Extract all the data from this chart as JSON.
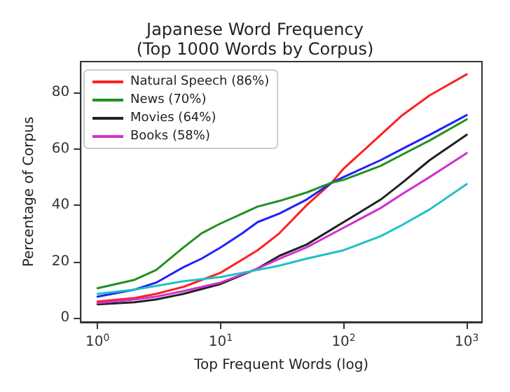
{
  "chart_data": {
    "type": "line",
    "title": "Japanese Word Frequency",
    "subtitle": "(Top 1000 Words by Corpus)",
    "xlabel": "Top Frequent Words (log)",
    "ylabel": "Percentage of Corpus",
    "log": "x",
    "xlim": [
      0.73,
      1330
    ],
    "xticks": [
      {
        "value": 1,
        "label": "10$^{0}$"
      },
      {
        "value": 10,
        "label": "10$^{1}$"
      },
      {
        "value": 100,
        "label": "10$^{2}$"
      },
      {
        "value": 1000,
        "label": "10$^{3}$"
      }
    ],
    "ylim": [
      -1.5,
      91
    ],
    "yticks": [
      0,
      20,
      40,
      60,
      80
    ],
    "grid": false,
    "legend": "top left",
    "marker": "none",
    "line_style": "solid",
    "series": [
      {
        "name": "Natural Speech (86%)",
        "color": "#ff2020",
        "x": [
          1,
          2,
          3,
          5,
          10,
          20,
          30,
          50,
          80,
          100,
          200,
          300,
          500,
          1000
        ],
        "values": [
          5.8,
          7,
          8.5,
          11,
          16,
          24,
          30,
          40,
          48,
          53,
          65,
          72,
          79,
          86.5
        ]
      },
      {
        "color": "#2020ff",
        "x": [
          1,
          2,
          3,
          5,
          7,
          10,
          15,
          20,
          30,
          50,
          80,
          100,
          200,
          300,
          500,
          1000
        ],
        "values": [
          7.5,
          10,
          12.5,
          18,
          21,
          25,
          30,
          34,
          37,
          42,
          48,
          50,
          56,
          60,
          65,
          72
        ]
      },
      {
        "name": "News (70%)",
        "color": "#209020",
        "x": [
          1,
          2,
          3,
          5,
          7,
          9,
          10,
          15,
          20,
          30,
          50,
          80,
          100,
          200,
          300,
          500,
          1000
        ],
        "values": [
          10.5,
          13.5,
          17,
          25,
          30,
          32.5,
          33.5,
          37,
          39.5,
          41.5,
          44.5,
          48,
          49,
          54,
          58,
          63,
          70.5
        ]
      },
      {
        "name": "Movies (64%)",
        "color": "#202020",
        "x": [
          1,
          2,
          3,
          5,
          10,
          20,
          30,
          50,
          100,
          200,
          300,
          500,
          1000
        ],
        "values": [
          4.8,
          5.5,
          6.5,
          8.5,
          12,
          17.5,
          22,
          26,
          34,
          42,
          48,
          56,
          65
        ]
      },
      {
        "name": "Books (58%)",
        "color": "#d030d0",
        "x": [
          1,
          2,
          3,
          5,
          10,
          20,
          30,
          50,
          100,
          200,
          300,
          500,
          1000
        ],
        "values": [
          5.2,
          6.5,
          7.5,
          9.5,
          12.5,
          17.5,
          21,
          25,
          32,
          39,
          44,
          50,
          58.5
        ]
      },
      {
        "color": "#20c0c8",
        "x": [
          1,
          2,
          5,
          10,
          20,
          30,
          50,
          100,
          200,
          300,
          500,
          1000
        ],
        "values": [
          8.5,
          10,
          13,
          14.5,
          17,
          18.5,
          21,
          24,
          29,
          33,
          38.5,
          47.5
        ]
      }
    ]
  }
}
